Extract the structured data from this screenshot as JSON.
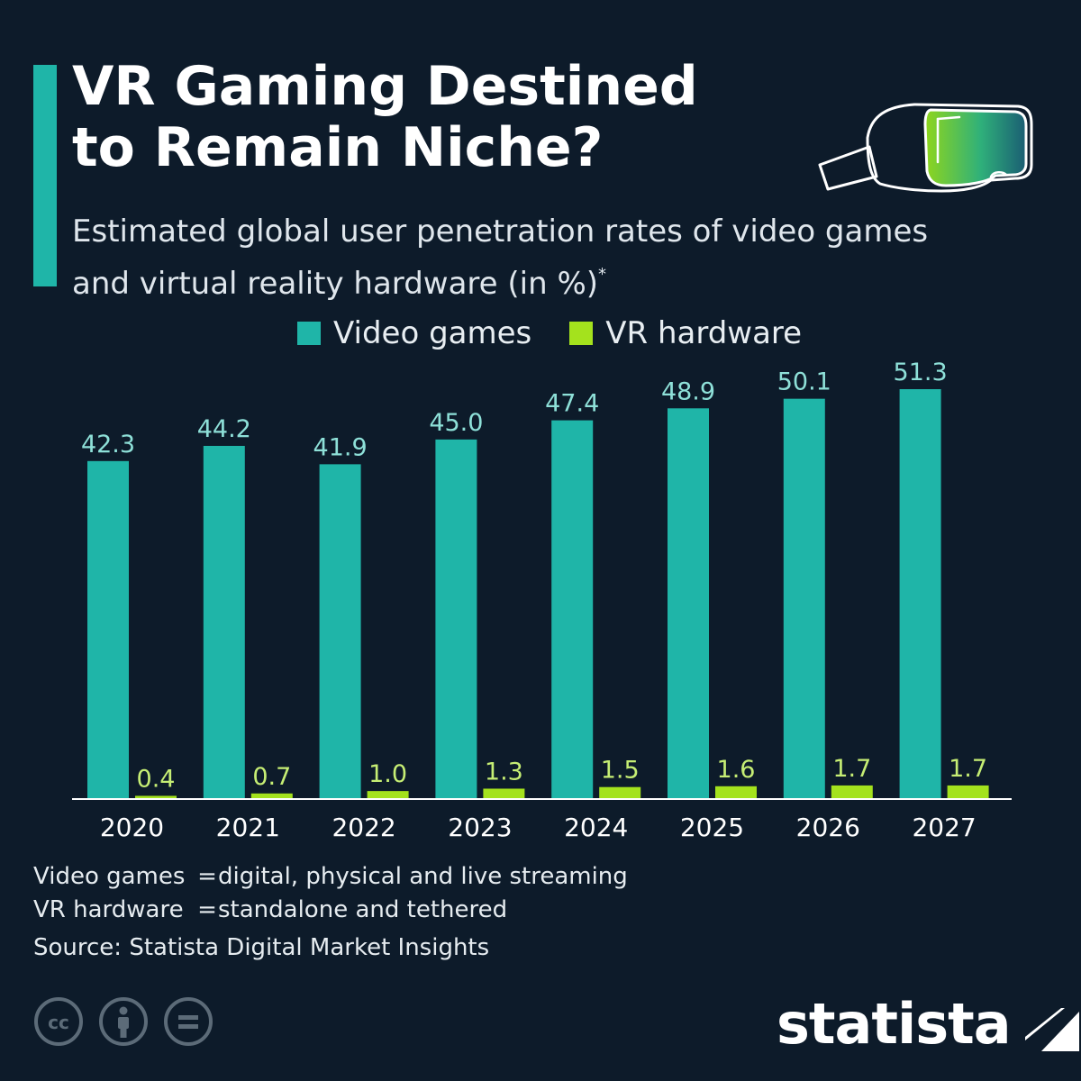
{
  "header": {
    "title_line1": "VR Gaming Destined",
    "title_line2": "to Remain Niche?",
    "subtitle_line1": "Estimated global user penetration rates of video games",
    "subtitle_line2": "and virtual reality hardware (in %)",
    "subtitle_footnote_mark": "*"
  },
  "colors": {
    "background": "#0d1b2a",
    "video_games": "#1fb5a8",
    "vr_hardware": "#a4e21d",
    "accent": "#1fb5a8"
  },
  "legend": [
    {
      "name": "Video games",
      "color": "#1fb5a8"
    },
    {
      "name": "VR hardware",
      "color": "#a4e21d"
    }
  ],
  "chart_data": {
    "type": "bar",
    "title": "VR Gaming Destined to Remain Niche?",
    "subtitle": "Estimated global user penetration rates of video games and virtual reality hardware (in %)",
    "categories": [
      "2020",
      "2021",
      "2022",
      "2023",
      "2024",
      "2025",
      "2026",
      "2027"
    ],
    "series": [
      {
        "name": "Video games",
        "values": [
          42.3,
          44.2,
          41.9,
          45.0,
          47.4,
          48.9,
          50.1,
          51.3
        ],
        "labels": [
          "42.3",
          "44.2",
          "41.9",
          "45.0",
          "47.4",
          "48.9",
          "50.1",
          "51.3"
        ]
      },
      {
        "name": "VR hardware",
        "values": [
          0.4,
          0.7,
          1.0,
          1.3,
          1.5,
          1.6,
          1.7,
          1.7
        ],
        "labels": [
          "0.4",
          "0.7",
          "1.0",
          "1.3",
          "1.5",
          "1.6",
          "1.7",
          "1.7"
        ]
      }
    ],
    "xlabel": "",
    "ylabel": "",
    "ylim": [
      0,
      51.3
    ],
    "grid": false,
    "legend_position": "top-center"
  },
  "notes": [
    {
      "term": "Video games",
      "eq": "=",
      "definition": "digital, physical and live streaming"
    },
    {
      "term": "VR hardware",
      "eq": "=",
      "definition": "standalone and tethered"
    }
  ],
  "source": "Source: Statista Digital Market Insights",
  "branding": {
    "logo_text": "statista"
  },
  "license_icons": [
    "cc-icon",
    "attribution-icon",
    "no-derivatives-icon"
  ]
}
